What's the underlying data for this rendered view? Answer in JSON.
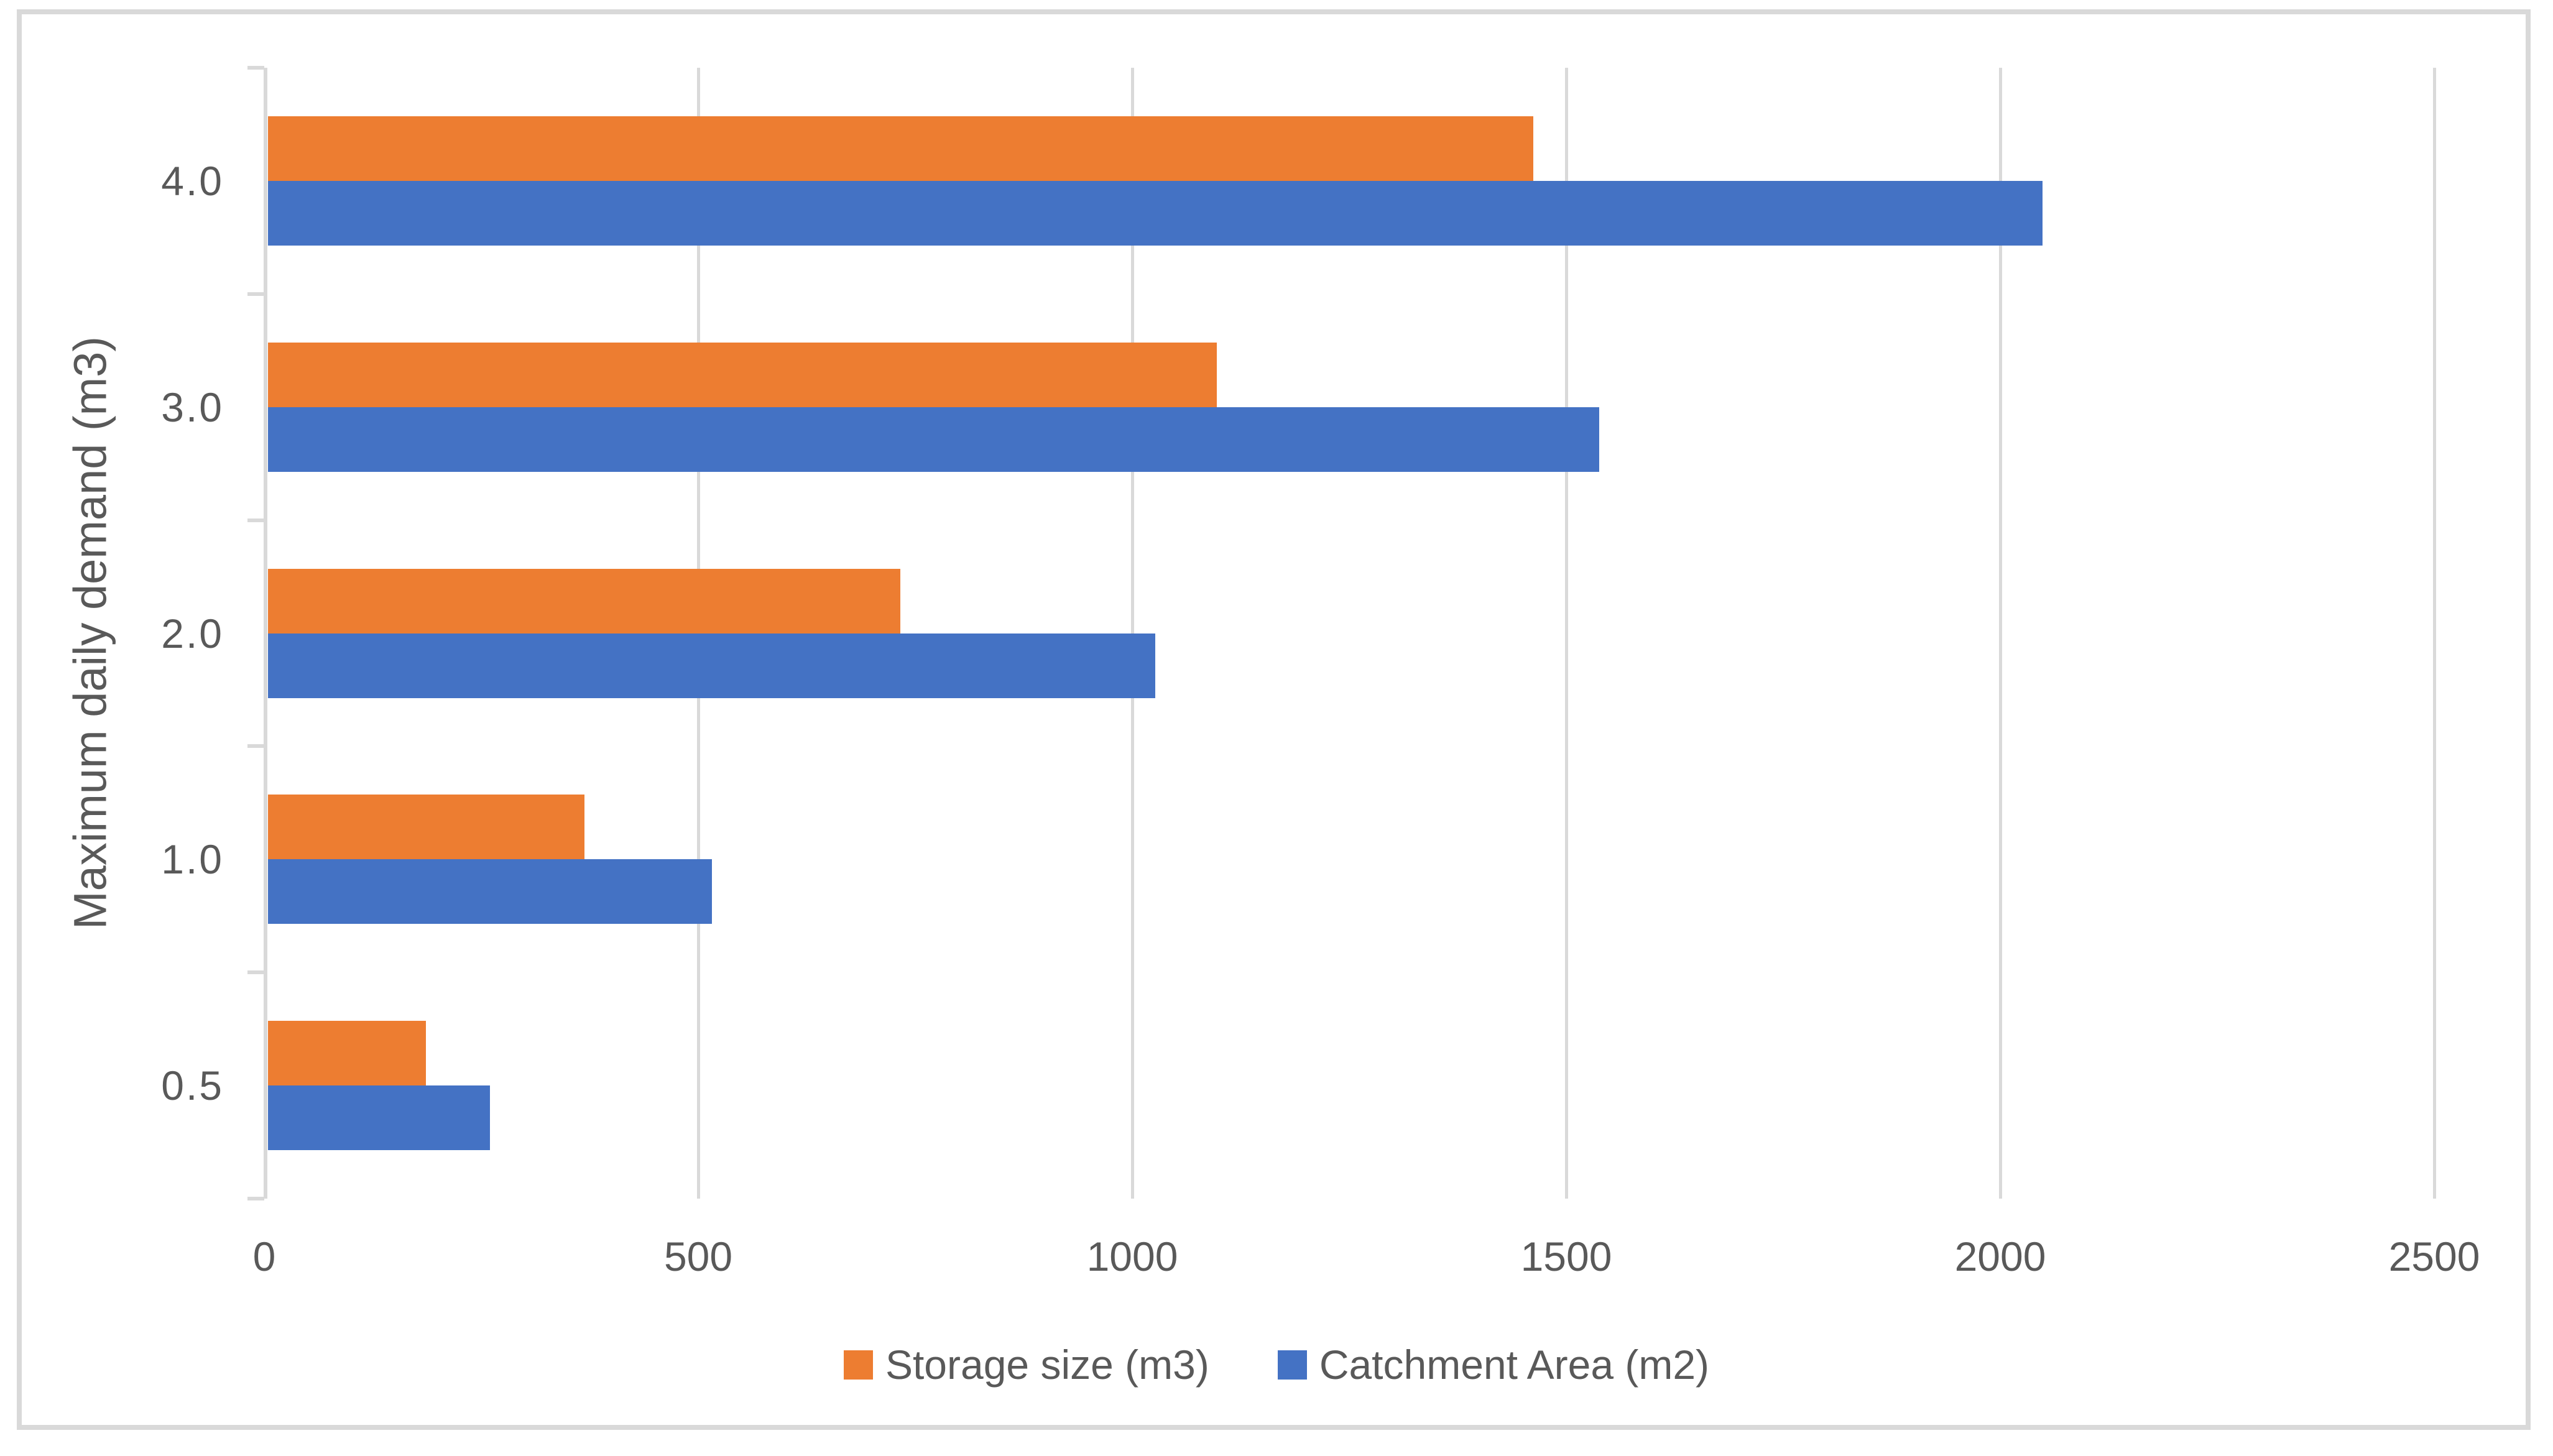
{
  "chart_data": {
    "type": "bar",
    "orientation": "horizontal",
    "title": "",
    "axis_title_y": "Maximum daily demand (m3)",
    "categories": [
      "4.0",
      "3.0",
      "2.0",
      "1.0",
      "0.5"
    ],
    "series": [
      {
        "name": "Storage size (m3)",
        "color": "#ED7D31",
        "values": [
          1460,
          1095,
          730,
          365,
          182.5
        ]
      },
      {
        "name": "Catchment Area (m2)",
        "color": "#4472C4",
        "values": [
          2048,
          1536,
          1024,
          512,
          256
        ]
      }
    ],
    "xlim": [
      0,
      2500
    ],
    "x_ticks": [
      "0",
      "500",
      "1000",
      "1500",
      "2000",
      "2500"
    ],
    "grid": true,
    "legend_position": "bottom"
  },
  "style": {
    "grid_color": "#D9D9D9",
    "axis_color": "#D9D9D9",
    "frame_color": "#D9D9D9",
    "text_color": "#595959",
    "background": "#FFFFFF"
  }
}
